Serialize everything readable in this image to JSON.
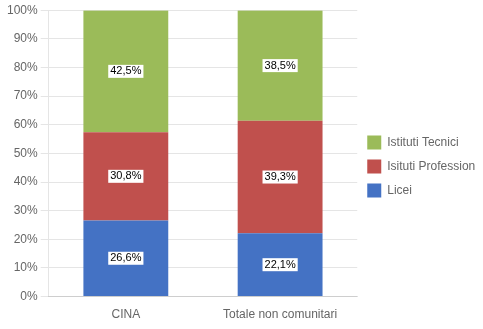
{
  "chart_data": {
    "type": "bar",
    "stacked": true,
    "categories": [
      "CINA",
      "Totale non comunitari"
    ],
    "series": [
      {
        "name": "Licei",
        "values": [
          26.6,
          22.1
        ],
        "value_labels": [
          "26,6%",
          "22,1%"
        ],
        "color": "#4472C4"
      },
      {
        "name": "Isituti Professionali",
        "values": [
          30.8,
          39.3
        ],
        "value_labels": [
          "30,8%",
          "39,3%"
        ],
        "color": "#C0504D"
      },
      {
        "name": "Istituti Tecnici",
        "values": [
          42.5,
          38.5
        ],
        "value_labels": [
          "42,5%",
          "38,5%"
        ],
        "color": "#9BBB59"
      }
    ],
    "ylim": [
      0,
      100
    ],
    "yticks": [
      {
        "value": 0,
        "label": "0%"
      },
      {
        "value": 10,
        "label": "10%"
      },
      {
        "value": 20,
        "label": "20%"
      },
      {
        "value": 30,
        "label": "30%"
      },
      {
        "value": 40,
        "label": "40%"
      },
      {
        "value": 50,
        "label": "50%"
      },
      {
        "value": 60,
        "label": "60%"
      },
      {
        "value": 70,
        "label": "70%"
      },
      {
        "value": 80,
        "label": "80%"
      },
      {
        "value": 90,
        "label": "90%"
      },
      {
        "value": 100,
        "label": "100%"
      }
    ],
    "grid": true,
    "legend": "right",
    "data_labels": true
  }
}
